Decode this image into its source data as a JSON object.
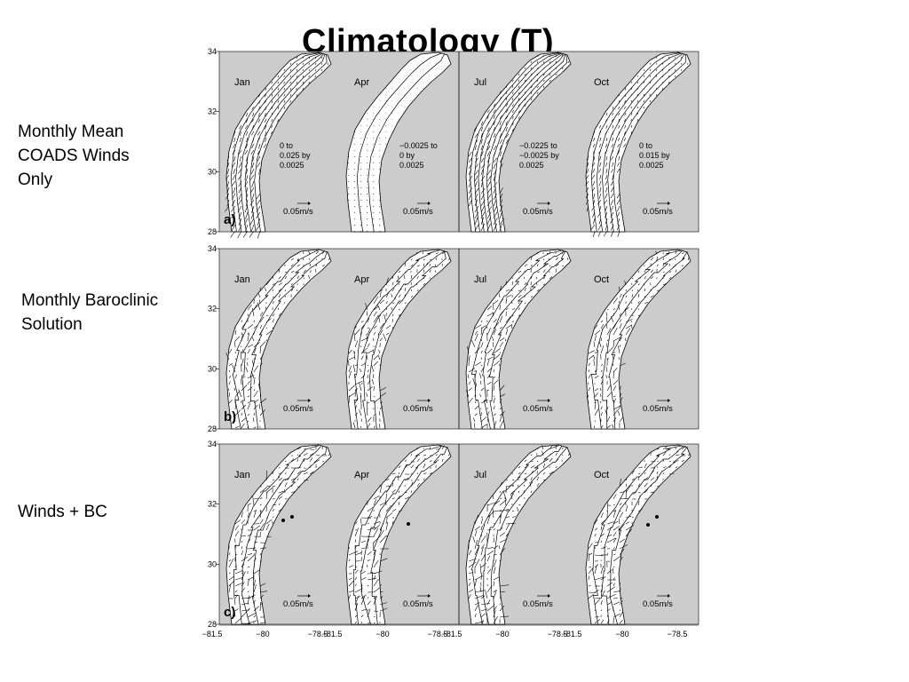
{
  "slide": {
    "title": "Climatology (T)",
    "row_labels": [
      "Monthly Mean\nCOADS Winds\nOnly",
      "Monthly Baroclinic\nSolution",
      "Winds + BC"
    ]
  },
  "figure": {
    "y_ticks": [
      "34",
      "32",
      "30",
      "28"
    ],
    "x_ticks": [
      "−81.5",
      "−80",
      "−78.5",
      "−81.5",
      "−80",
      "−78.5",
      "−81.5",
      "−80",
      "−78.5",
      "−81.5",
      "−80",
      "−78.5"
    ],
    "rows": [
      {
        "panel_label": "a)",
        "months": [
          "Jan",
          "Apr",
          "Jul",
          "Oct"
        ],
        "contour_notes": [
          "0 to\n0.025 by\n0.0025",
          "−0.0025 to\n0 by\n0.0025",
          "−0.0225 to\n−0.0025 by\n0.0025",
          "0 to\n0.015 by\n0.0025"
        ],
        "scale_labels": [
          "0.05m/s",
          "0.05m/s",
          "0.05m/s",
          "0.05m/s"
        ]
      },
      {
        "panel_label": "b)",
        "months": [
          "Jan",
          "Apr",
          "Jul",
          "Oct"
        ],
        "contour_notes": [
          "",
          "",
          "",
          ""
        ],
        "scale_labels": [
          "0.05m/s",
          "0.05m/s",
          "0.05m/s",
          "0.05m/s"
        ]
      },
      {
        "panel_label": "c)",
        "months": [
          "Jan",
          "Apr",
          "Jul",
          "Oct"
        ],
        "contour_notes": [
          "",
          "",
          "",
          ""
        ],
        "scale_labels": [
          "0.05m/s",
          "0.05m/s",
          "0.05m/s",
          "0.05m/s"
        ]
      }
    ]
  },
  "colors": {
    "land": "#cccccc",
    "ocean": "#ffffff",
    "ink": "#000000"
  }
}
